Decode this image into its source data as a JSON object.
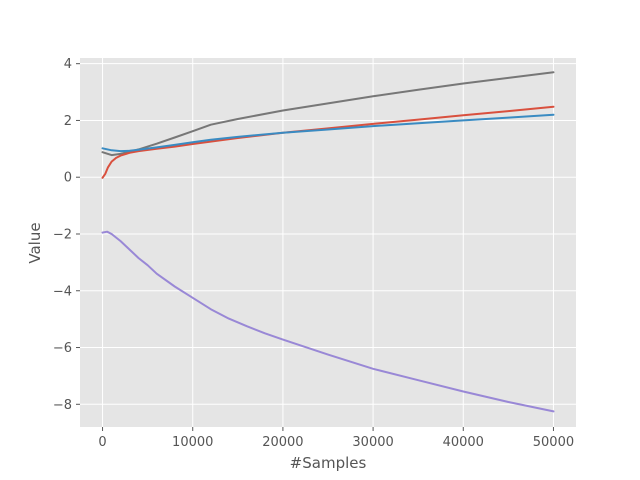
{
  "chart_data": {
    "type": "line",
    "title": "",
    "xlabel": "#Samples",
    "ylabel": "Value",
    "xlim": [
      -2500,
      52500
    ],
    "ylim": [
      -8.8,
      4.2
    ],
    "grid": true,
    "x_ticks": [
      0,
      10000,
      20000,
      30000,
      40000,
      50000
    ],
    "x_tick_labels": [
      "0",
      "10000",
      "20000",
      "30000",
      "40000",
      "50000"
    ],
    "y_ticks": [
      -8,
      -6,
      -4,
      -2,
      0,
      2,
      4
    ],
    "y_tick_labels": [
      "−8",
      "−6",
      "−4",
      "−2",
      "0",
      "2",
      "4"
    ],
    "colors": {
      "plot_background": "#e5e5e5",
      "grid": "#ffffff",
      "tick_text": "#555555"
    },
    "series": [
      {
        "color": "#777777",
        "points": [
          [
            0,
            0.88
          ],
          [
            1000,
            0.78
          ],
          [
            2000,
            0.82
          ],
          [
            3000,
            0.9
          ],
          [
            4000,
            0.98
          ],
          [
            6000,
            1.18
          ],
          [
            8000,
            1.4
          ],
          [
            10000,
            1.62
          ],
          [
            12000,
            1.85
          ],
          [
            15000,
            2.05
          ],
          [
            20000,
            2.35
          ],
          [
            25000,
            2.6
          ],
          [
            30000,
            2.85
          ],
          [
            35000,
            3.08
          ],
          [
            40000,
            3.3
          ],
          [
            45000,
            3.5
          ],
          [
            50000,
            3.7
          ]
        ]
      },
      {
        "color": "#d9503e",
        "points": [
          [
            0,
            -0.02
          ],
          [
            300,
            0.12
          ],
          [
            600,
            0.35
          ],
          [
            1000,
            0.55
          ],
          [
            1500,
            0.68
          ],
          [
            2000,
            0.76
          ],
          [
            3000,
            0.86
          ],
          [
            4000,
            0.92
          ],
          [
            6000,
            1.0
          ],
          [
            8000,
            1.08
          ],
          [
            10000,
            1.17
          ],
          [
            15000,
            1.38
          ],
          [
            20000,
            1.57
          ],
          [
            25000,
            1.72
          ],
          [
            30000,
            1.88
          ],
          [
            35000,
            2.03
          ],
          [
            40000,
            2.18
          ],
          [
            45000,
            2.33
          ],
          [
            50000,
            2.48
          ]
        ]
      },
      {
        "color": "#3a8bc2",
        "points": [
          [
            0,
            1.02
          ],
          [
            1000,
            0.95
          ],
          [
            2000,
            0.92
          ],
          [
            3000,
            0.93
          ],
          [
            4000,
            0.97
          ],
          [
            6000,
            1.05
          ],
          [
            8000,
            1.14
          ],
          [
            10000,
            1.23
          ],
          [
            12000,
            1.32
          ],
          [
            15000,
            1.42
          ],
          [
            20000,
            1.57
          ],
          [
            25000,
            1.68
          ],
          [
            30000,
            1.8
          ],
          [
            35000,
            1.9
          ],
          [
            40000,
            2.0
          ],
          [
            45000,
            2.1
          ],
          [
            50000,
            2.2
          ]
        ]
      },
      {
        "color": "#9988d6",
        "points": [
          [
            0,
            -1.95
          ],
          [
            500,
            -1.92
          ],
          [
            1000,
            -2.0
          ],
          [
            2000,
            -2.25
          ],
          [
            3000,
            -2.55
          ],
          [
            4000,
            -2.85
          ],
          [
            5000,
            -3.1
          ],
          [
            6000,
            -3.4
          ],
          [
            8000,
            -3.85
          ],
          [
            10000,
            -4.25
          ],
          [
            12000,
            -4.65
          ],
          [
            14000,
            -4.98
          ],
          [
            16000,
            -5.25
          ],
          [
            18000,
            -5.5
          ],
          [
            20000,
            -5.72
          ],
          [
            25000,
            -6.25
          ],
          [
            30000,
            -6.75
          ],
          [
            35000,
            -7.15
          ],
          [
            40000,
            -7.55
          ],
          [
            45000,
            -7.92
          ],
          [
            50000,
            -8.25
          ]
        ]
      }
    ]
  }
}
